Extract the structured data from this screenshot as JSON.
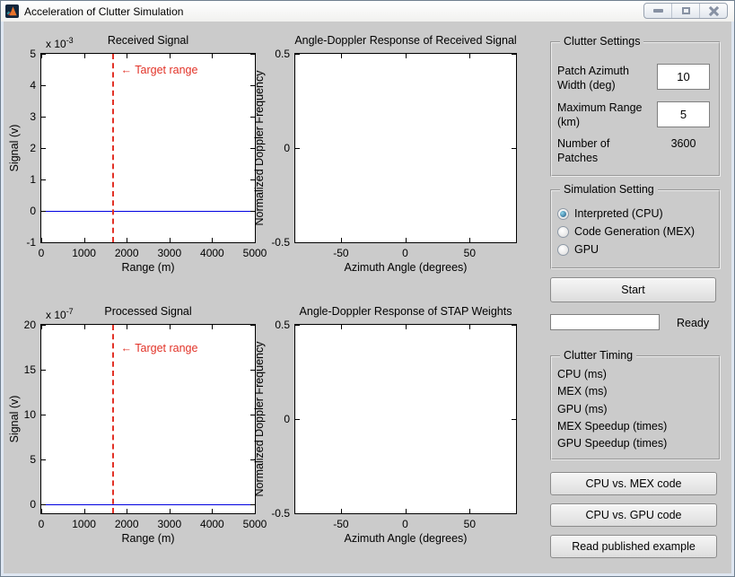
{
  "window": {
    "title": "Acceleration of Clutter Simulation",
    "control_icons": [
      "minimize",
      "restore",
      "close"
    ]
  },
  "colors": {
    "figure_background": "#cbcbcb",
    "signal_line_blue": "#0000e0",
    "target_line_red": "#e23227"
  },
  "plots": {
    "received": {
      "title": "Received Signal",
      "y_exp_prefix": "x 10",
      "y_exp_sup": "-3",
      "ylabel": "Signal (v)",
      "xlabel": "Range (m)",
      "yticks": [
        "5",
        "4",
        "3",
        "2",
        "1",
        "0",
        "-1"
      ],
      "xticks": [
        "0",
        "1000",
        "2000",
        "3000",
        "4000",
        "5000"
      ],
      "annotation": "← Target range",
      "target_range_m": 1700,
      "zero_line_value": 0
    },
    "angle_doppler_received": {
      "title": "Angle-Doppler Response of Received Signal",
      "ylabel": "Normalized Doppler Frequency",
      "xlabel": "Azimuth Angle (degrees)",
      "yticks": [
        "0.5",
        "0",
        "-0.5"
      ],
      "xticks": [
        "-50",
        "0",
        "50"
      ]
    },
    "processed": {
      "title": "Processed Signal",
      "y_exp_prefix": "x 10",
      "y_exp_sup": "-7",
      "ylabel": "Signal (v)",
      "xlabel": "Range (m)",
      "yticks": [
        "20",
        "15",
        "10",
        "5",
        "0"
      ],
      "xticks": [
        "0",
        "1000",
        "2000",
        "3000",
        "4000",
        "5000"
      ],
      "annotation": "← Target range",
      "target_range_m": 1700,
      "zero_line_value": 0
    },
    "angle_doppler_stap": {
      "title": "Angle-Doppler Response of STAP Weights",
      "ylabel": "Normalized Doppler Frequency",
      "xlabel": "Azimuth Angle (degrees)",
      "yticks": [
        "0.5",
        "0",
        "-0.5"
      ],
      "xticks": [
        "-50",
        "0",
        "50"
      ]
    }
  },
  "panel": {
    "clutter_settings": {
      "legend": "Clutter Settings",
      "patch_azimuth_label": "Patch Azimuth Width (deg)",
      "patch_azimuth_value": "10",
      "max_range_label": "Maximum Range (km)",
      "max_range_value": "5",
      "num_patches_label": "Number of Patches",
      "num_patches_value": "3600"
    },
    "simulation_setting": {
      "legend": "Simulation Setting",
      "options": [
        {
          "label": "Interpreted (CPU)",
          "selected": true
        },
        {
          "label": "Code Generation (MEX)",
          "selected": false
        },
        {
          "label": "GPU",
          "selected": false
        }
      ]
    },
    "start_button": "Start",
    "status": {
      "field_value": "",
      "ready_label": "Ready"
    },
    "clutter_timing": {
      "legend": "Clutter Timing",
      "rows": [
        "CPU (ms)",
        "MEX (ms)",
        "GPU (ms)",
        "MEX Speedup (times)",
        "GPU Speedup (times)"
      ]
    },
    "buttons": [
      "CPU vs. MEX code",
      "CPU vs. GPU code",
      "Read published example"
    ]
  }
}
